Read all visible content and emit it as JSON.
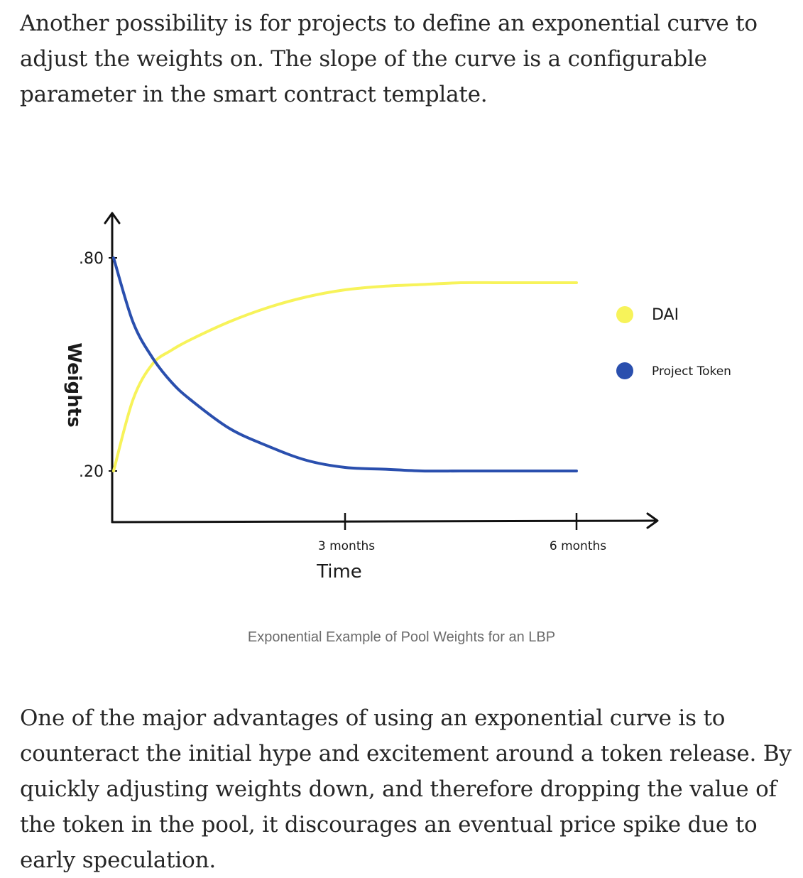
{
  "article": {
    "paragraph_top": "Another possibility is for projects to define an exponential curve to adjust the weights on. The slope of the curve is a configurable parameter in the smart contract template.",
    "paragraph_bottom": "One of the major advantages of using an exponential curve is to counteract the initial hype and excitement around a token release. By quickly adjusting weights down, and therefore dropping the value of the token in the pool, it discourages an eventual price spike due to early speculation."
  },
  "figure": {
    "caption": "Exponential Example of Pool Weights for an LBP"
  },
  "chart_data": {
    "type": "line",
    "title": "",
    "xlabel": "Time",
    "ylabel": "Weights",
    "x_ticks": [
      "3 months",
      "6 months"
    ],
    "y_ticks": [
      ".80",
      ".20"
    ],
    "ylim": [
      0.05,
      0.95
    ],
    "x": [
      0,
      0.25,
      0.5,
      0.75,
      1,
      1.5,
      2,
      2.5,
      3,
      3.5,
      4,
      4.5,
      5,
      5.5,
      6
    ],
    "series": [
      {
        "name": "DAI",
        "color": "#f7f35a",
        "values": [
          0.2,
          0.4,
          0.5,
          0.54,
          0.57,
          0.62,
          0.66,
          0.69,
          0.71,
          0.72,
          0.725,
          0.73,
          0.73,
          0.73,
          0.73
        ]
      },
      {
        "name": "Project Token",
        "color": "#2a4fae",
        "values": [
          0.8,
          0.62,
          0.52,
          0.45,
          0.4,
          0.32,
          0.27,
          0.23,
          0.21,
          0.205,
          0.2,
          0.2,
          0.2,
          0.2,
          0.2
        ]
      }
    ],
    "legend": [
      {
        "label": "DAI",
        "color": "#f7f35a"
      },
      {
        "label": "Project Token",
        "color": "#2a4fae"
      }
    ],
    "legend_position": "right",
    "grid": false
  }
}
